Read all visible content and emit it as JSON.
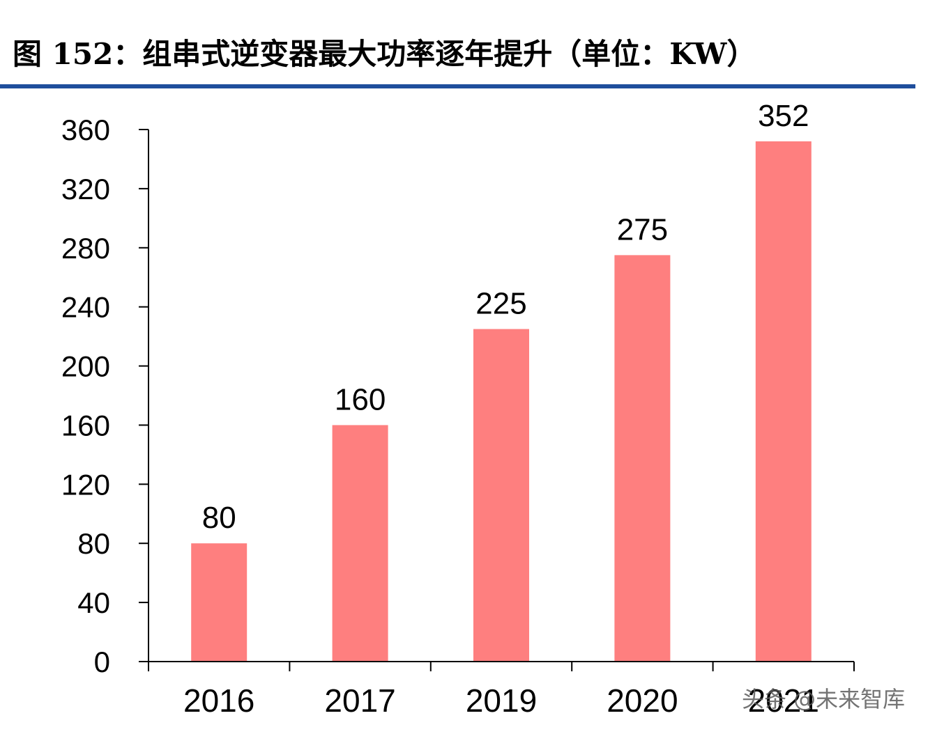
{
  "title": "图 152：组串式逆变器最大功率逐年提升（单位：KW）",
  "watermark": "头条 @未来智库",
  "colors": {
    "bar": "#fe7f7f",
    "title_rule": "#1f4e9c",
    "axis": "#000000",
    "text": "#000000"
  },
  "chart_data": {
    "type": "bar",
    "title": "图 152：组串式逆变器最大功率逐年提升（单位：KW）",
    "categories": [
      "2016",
      "2017",
      "2019",
      "2020",
      "2021"
    ],
    "values": [
      80,
      160,
      225,
      275,
      352
    ],
    "data_labels": [
      "80",
      "160",
      "225",
      "275",
      "352"
    ],
    "xlabel": "",
    "ylabel": "",
    "ylim": [
      0,
      360
    ],
    "yticks": [
      0,
      40,
      80,
      120,
      160,
      200,
      240,
      280,
      320,
      360
    ],
    "grid": false,
    "legend": "none"
  }
}
